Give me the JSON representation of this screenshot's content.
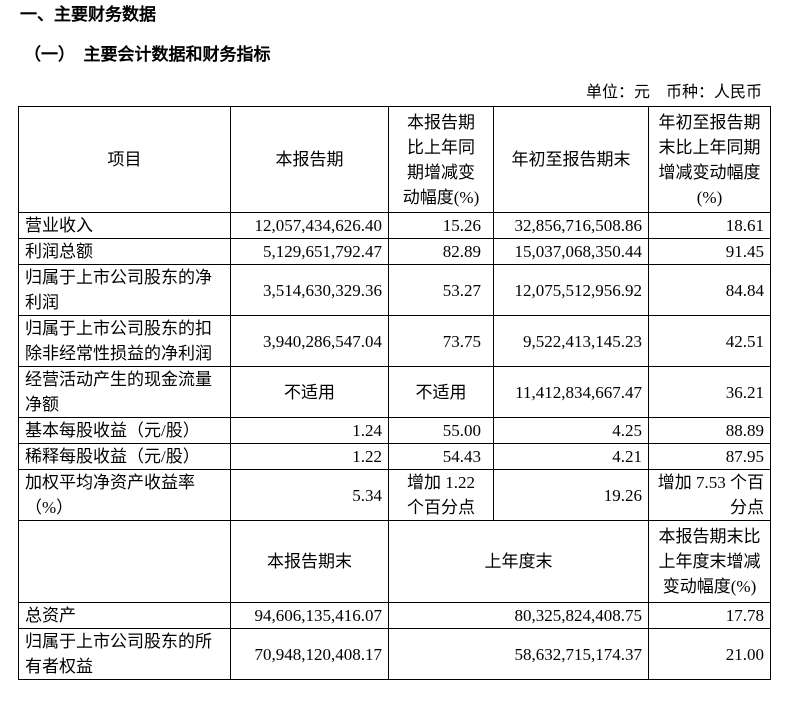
{
  "heading": "一、主要财务数据",
  "subheading": "（一）　主要会计数据和财务指标",
  "unit_note": "单位：元　币种：人民币",
  "table": {
    "header": [
      "项目",
      "本报告期",
      "本报告期比上年同期增减变动幅度(%)",
      "年初至报告期末",
      "年初至报告期末比上年同期增减变动幅度(%)"
    ],
    "rows": [
      [
        "营业收入",
        "12,057,434,626.40",
        "15.26",
        "32,856,716,508.86",
        "18.61"
      ],
      [
        "利润总额",
        "5,129,651,792.47",
        "82.89",
        "15,037,068,350.44",
        "91.45"
      ],
      [
        "归属于上市公司股东的净利润",
        "3,514,630,329.36",
        "53.27",
        "12,075,512,956.92",
        "84.84"
      ],
      [
        "归属于上市公司股东的扣除非经常性损益的净利润",
        "3,940,286,547.04",
        "73.75",
        "9,522,413,145.23",
        "42.51"
      ],
      [
        "经营活动产生的现金流量净额",
        "不适用",
        "不适用",
        "11,412,834,667.47",
        "36.21"
      ],
      [
        "基本每股收益（元/股）",
        "1.24",
        "55.00",
        "4.25",
        "88.89"
      ],
      [
        "稀释每股收益（元/股）",
        "1.22",
        "54.43",
        "4.21",
        "87.95"
      ],
      [
        "加权平均净资产收益率（%）",
        "5.34",
        "增加 1.22 个百分点",
        "19.26",
        "增加 7.53 个百分点"
      ]
    ]
  },
  "balance_table": {
    "header": {
      "current": "本报告期末",
      "prior": "上年度末",
      "change": "本报告期末比上年度末增减变动幅度(%)"
    },
    "rows": [
      [
        "总资产",
        "94,606,135,416.07",
        "80,325,824,408.75",
        "17.78"
      ],
      [
        "归属于上市公司股东的所有者权益",
        "70,948,120,408.17",
        "58,632,715,174.37",
        "21.00"
      ]
    ]
  }
}
